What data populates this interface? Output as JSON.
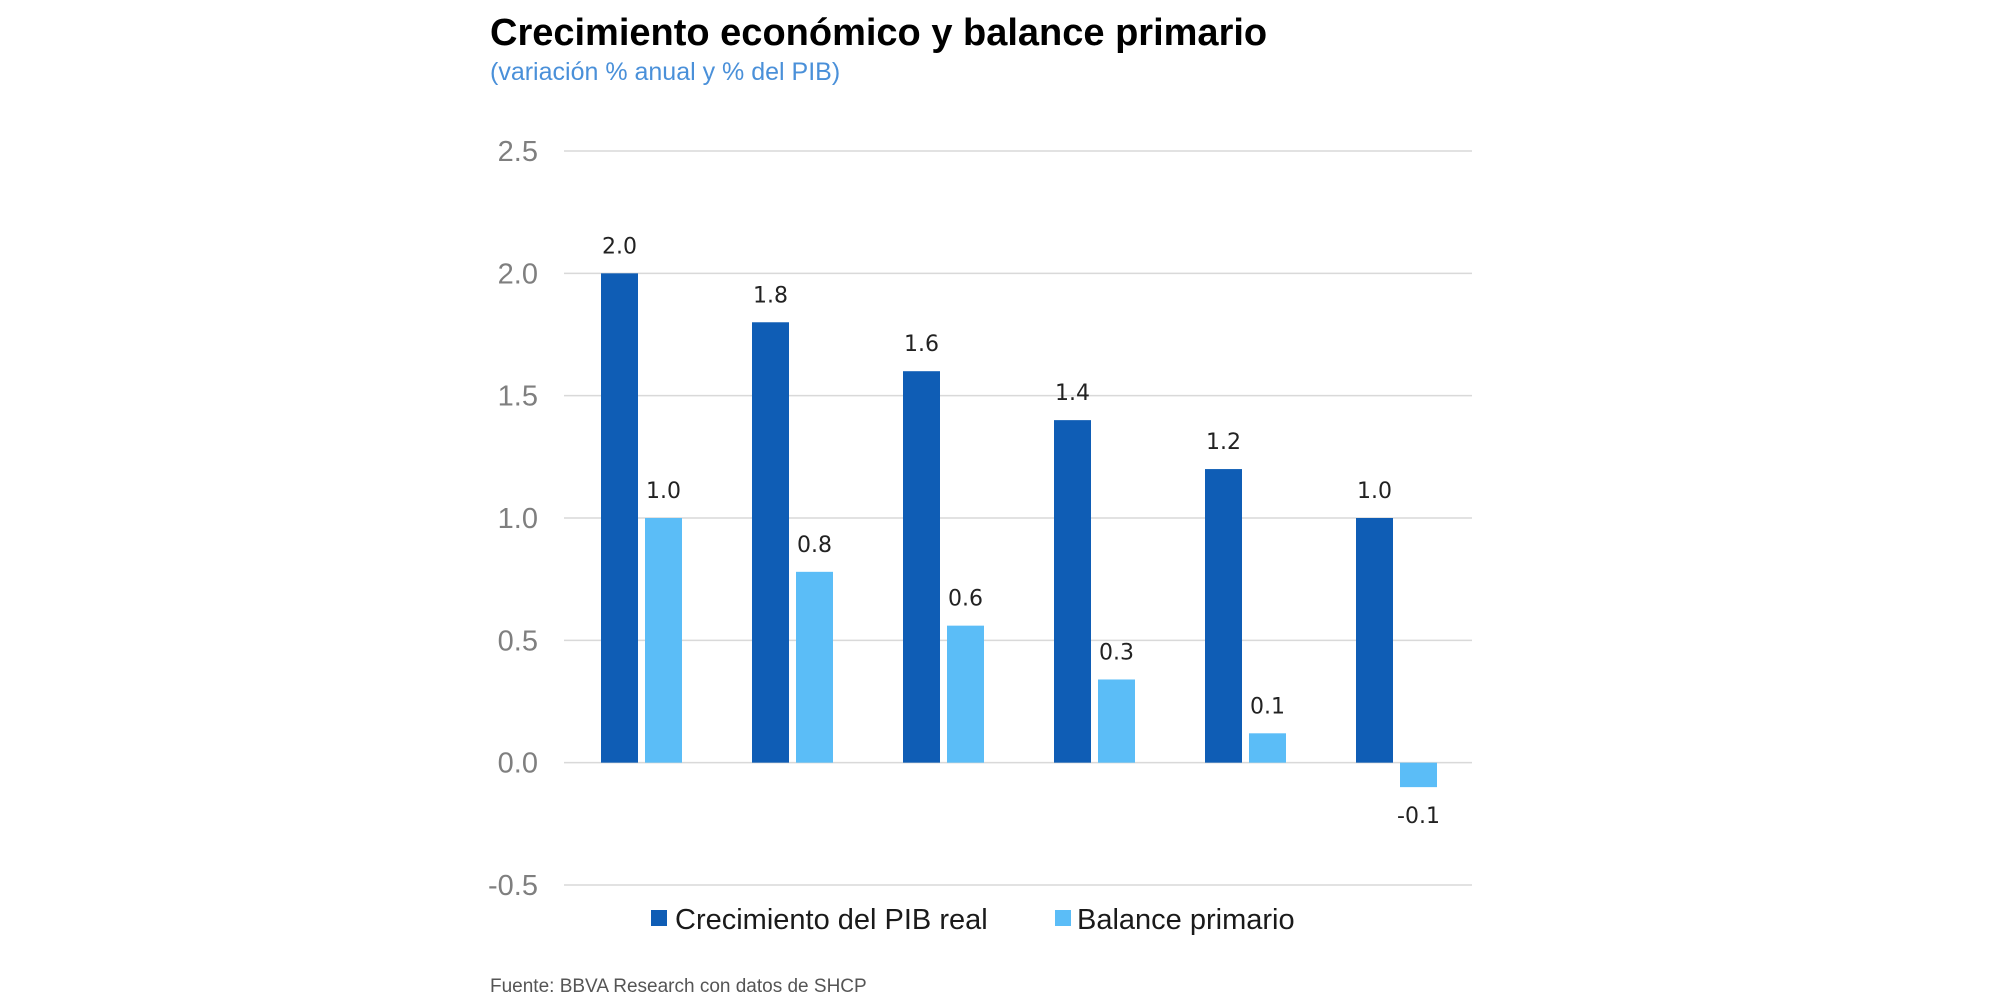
{
  "chart_data": {
    "type": "bar",
    "title": "Crecimiento económico y balance primario",
    "subtitle": "(variación % anual y % del PIB)",
    "source": "Fuente: BBVA Research con datos de SHCP",
    "xlabel": "",
    "ylabel": "",
    "categories": [
      "",
      "",
      "",
      "",
      "",
      ""
    ],
    "series": [
      {
        "name": "Crecimiento del PIB real",
        "color": "#0f5db5",
        "values": [
          2.0,
          1.8,
          1.6,
          1.4,
          1.2,
          1.0
        ],
        "labels": [
          "2.0",
          "1.8",
          "1.6",
          "1.4",
          "1.2",
          "1.0"
        ]
      },
      {
        "name": "Balance primario",
        "color": "#5bbdf7",
        "values": [
          1.0,
          0.78,
          0.56,
          0.34,
          0.12,
          -0.1
        ],
        "labels": [
          "1.0",
          "0.8",
          "0.6",
          "0.3",
          "0.1",
          "-0.1"
        ]
      }
    ],
    "ylim": [
      -0.5,
      2.5
    ],
    "yticks": [
      2.5,
      2.0,
      1.5,
      1.0,
      0.5,
      0.0,
      -0.5
    ],
    "ytick_labels": [
      "2.5",
      "2.0",
      "1.5",
      "1.0",
      "0.5",
      "0.0",
      "-0.5"
    ],
    "grid": true,
    "gridline_color": "#d9d9d9",
    "legend_position": "bottom"
  }
}
